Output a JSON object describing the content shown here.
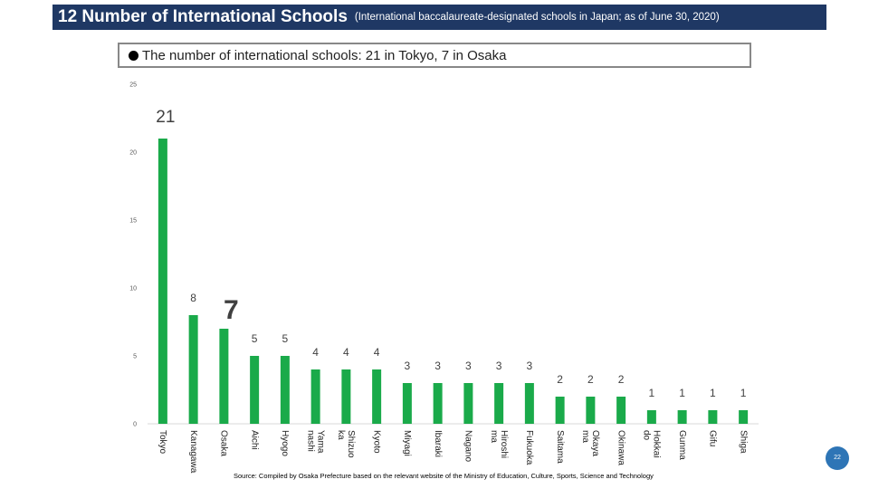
{
  "header": {
    "title": "12 Number of International Schools",
    "subtitle": "(International baccalaureate-designated schools in Japan; as of June 30, 2020)"
  },
  "summary": {
    "text": "The number of international schools: 21 in Tokyo, 7 in Osaka"
  },
  "footer": {
    "source": "Source: Compiled by Osaka Prefecture based on the relevant website of the Ministry of Education, Culture, Sports, Science and Technology",
    "page_number": "22"
  },
  "colors": {
    "bar": "#1aaa4a",
    "header_bg": "#1f3864",
    "page_badge": "#2e75b6"
  },
  "chart_data": {
    "type": "bar",
    "categories": [
      "Tokyo",
      "Kanagawa",
      "Osaka",
      "Aichi",
      "Hyogo",
      "Yamanashi",
      "Shizuoka",
      "Kyoto",
      "Miyagi",
      "Ibaraki",
      "Nagano",
      "Hiroshima",
      "Fukuoka",
      "Saitama",
      "Okayama",
      "Okinawa",
      "Hokkaido",
      "Gunma",
      "Gifu",
      "Shiga"
    ],
    "category_labels": [
      "Tokyo",
      "Kanagawa",
      "Osaka",
      "Aichi",
      "Hyogo",
      "Yama\nnashi",
      "Shizuo\nka",
      "Kyoto",
      "Miyagi",
      "Ibaraki",
      "Nagano",
      "Hiroshi\nma",
      "Fukuoka",
      "Saitama",
      "Okaya\nma",
      "Okinawa",
      "Hokkai\ndo",
      "Gunma",
      "Gifu",
      "Shiga"
    ],
    "values": [
      21,
      8,
      7,
      5,
      5,
      4,
      4,
      4,
      3,
      3,
      3,
      3,
      3,
      2,
      2,
      2,
      1,
      1,
      1,
      1
    ],
    "ylim": [
      0,
      25
    ],
    "yticks": [
      0,
      5,
      10,
      15,
      20,
      25
    ],
    "grid": false,
    "legend": "none"
  }
}
